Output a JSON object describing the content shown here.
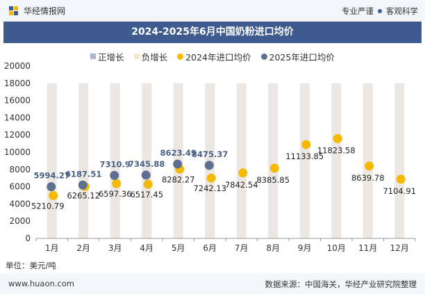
{
  "header": {
    "brand": "华经情报网",
    "tag1": "专业严谨",
    "tag2": "客观科学"
  },
  "title": "2024-2025年6月中国奶粉进口均价",
  "unit_label": "单位：美元/吨",
  "footer": {
    "site": "www.huaon.com",
    "source": "数据来源：中国海关，华经产业研究院整理"
  },
  "colors": {
    "title_bg": "#3e5a8e",
    "positive": "#aab6cc",
    "negative": "#f7e8c8",
    "series2024": "#f6b900",
    "series2025": "#5f6f90",
    "band": "#ece7e2"
  },
  "chart_data": {
    "type": "line",
    "categories": [
      "1月",
      "2月",
      "3月",
      "4月",
      "5月",
      "6月",
      "7月",
      "8月",
      "9月",
      "10月",
      "11月",
      "12月"
    ],
    "series": [
      {
        "name": "2024年进口均价",
        "values": [
          5210.79,
          6265.12,
          6597.36,
          6517.45,
          8282.27,
          7242.13,
          7842.54,
          8385.85,
          11133.85,
          11823.58,
          8639.78,
          7104.91
        ]
      },
      {
        "name": "2025年进口均价",
        "values": [
          5994.27,
          6187.51,
          7310.9,
          7345.88,
          8623.49,
          8475.37,
          null,
          null,
          null,
          null,
          null,
          null
        ]
      }
    ],
    "labels2024": [
      "5210.79",
      "6265.12",
      "6597.36",
      "6517.45",
      "8282.27",
      "7242.13",
      "7842.54",
      "8385.85",
      "11133.85",
      "11823.58",
      "8639.78",
      "7104.91"
    ],
    "labels2025": [
      "5994.27",
      "6187.51",
      "7310.9",
      "7345.88",
      "8623.49",
      "8475.37"
    ],
    "legend": [
      "正增长",
      "负增长",
      "2024年进口均价",
      "2025年进口均价"
    ],
    "ylim": [
      0,
      20000
    ],
    "yticks": [
      "0",
      "2000",
      "4000",
      "6000",
      "8000",
      "10000",
      "12000",
      "14000",
      "16000",
      "18000",
      "20000"
    ]
  }
}
